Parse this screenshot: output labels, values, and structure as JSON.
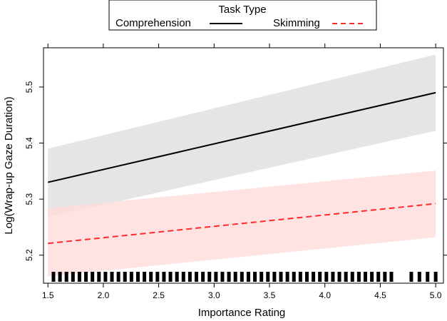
{
  "chart_data": {
    "type": "line",
    "title": "",
    "xlabel": "Importance Rating",
    "ylabel": "Log(Wrap-up Gaze Duration)",
    "xlim": [
      1.46,
      5.07
    ],
    "ylim": [
      5.15,
      5.57
    ],
    "x_ticks": [
      1.5,
      2.0,
      2.5,
      3.0,
      3.5,
      4.0,
      4.5,
      5.0
    ],
    "x_tick_labels": [
      "1.5",
      "2.0",
      "2.5",
      "3.0",
      "3.5",
      "4.0",
      "4.5",
      "5.0"
    ],
    "y_ticks": [
      5.2,
      5.3,
      5.4,
      5.5
    ],
    "y_tick_labels": [
      "5.2",
      "5.3",
      "5.4",
      "5.5"
    ],
    "grid": false,
    "legend": {
      "title": "Task  Type",
      "placement": "top",
      "entries": [
        "Comprehension",
        "Skimming"
      ]
    },
    "series": [
      {
        "name": "Comprehension",
        "color": "#000000",
        "dash": "solid",
        "band_color": "#dedede",
        "x": [
          1.5,
          5.0
        ],
        "y": [
          5.33,
          5.49
        ],
        "lower": [
          5.268,
          5.422
        ],
        "upper": [
          5.39,
          5.558
        ]
      },
      {
        "name": "Skimming",
        "color": "#ff2a2a",
        "dash": "dashed",
        "band_color": "#ffdcdc",
        "x": [
          1.5,
          5.0
        ],
        "y": [
          5.221,
          5.292
        ],
        "lower": [
          5.162,
          5.232
        ],
        "upper": [
          5.284,
          5.351
        ]
      }
    ],
    "rug": {
      "segments": [
        {
          "from": 1.55,
          "to": 4.6,
          "count": 53
        },
        {
          "from": 4.78,
          "to": 5.0,
          "count": 4
        }
      ]
    }
  }
}
